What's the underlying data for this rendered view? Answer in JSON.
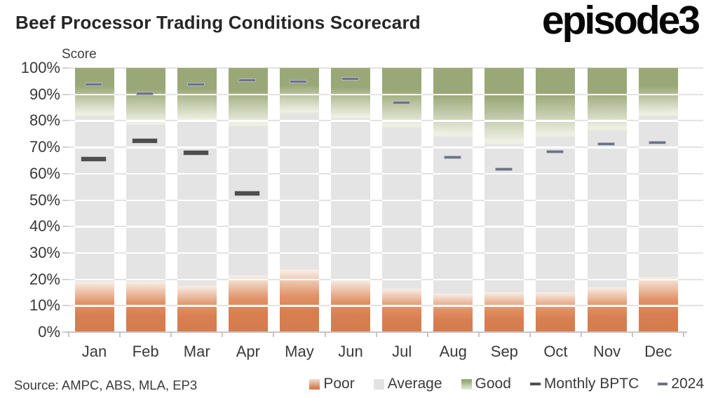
{
  "header": {
    "title": "Beef Processor Trading Conditions Scorecard",
    "logo": "episode3"
  },
  "source_note": "Source: AMPC, ABS, MLA, EP3",
  "chart_data": {
    "type": "bar",
    "stacked": true,
    "title": "Beef Processor Trading Conditions Scorecard",
    "axis_label": "Score",
    "xlabel": "",
    "ylabel": "Score",
    "ylim": [
      0,
      100
    ],
    "ytick_labels": [
      "0%",
      "10%",
      "20%",
      "30%",
      "40%",
      "50%",
      "60%",
      "70%",
      "80%",
      "90%",
      "100%"
    ],
    "grid": true,
    "legend_position": "bottom",
    "categories": [
      "Jan",
      "Feb",
      "Mar",
      "Apr",
      "May",
      "Jun",
      "Jul",
      "Aug",
      "Sep",
      "Oct",
      "Nov",
      "Dec"
    ],
    "series": [
      {
        "name": "Poor",
        "type": "bar-segment",
        "color": "#d87f52",
        "values": [
          19,
          19,
          17.5,
          21.5,
          23.5,
          20,
          16.5,
          14.5,
          15,
          15,
          17,
          21
        ]
      },
      {
        "name": "Average",
        "type": "bar-segment",
        "color": "#e4e4e4",
        "values": [
          63,
          59.5,
          62,
          56.5,
          59.5,
          61,
          61,
          59.5,
          56,
          59,
          59.5,
          61
        ]
      },
      {
        "name": "Good",
        "type": "bar-segment",
        "color": "#9aa878",
        "values": [
          18,
          21.5,
          20.5,
          22,
          17,
          19,
          22.5,
          26,
          29,
          26,
          23.5,
          18
        ]
      },
      {
        "name": "Monthly BPTC",
        "type": "dash-marker",
        "color": "#4e4e4e",
        "values": [
          65,
          72,
          67.5,
          52,
          null,
          null,
          null,
          null,
          null,
          null,
          null,
          null
        ]
      },
      {
        "name": "2024",
        "type": "dash-marker",
        "color": "#6e7384",
        "values": [
          93.5,
          90,
          93.5,
          95,
          94.5,
          95.5,
          86.5,
          66,
          61.5,
          68,
          71,
          71.5
        ]
      }
    ]
  }
}
